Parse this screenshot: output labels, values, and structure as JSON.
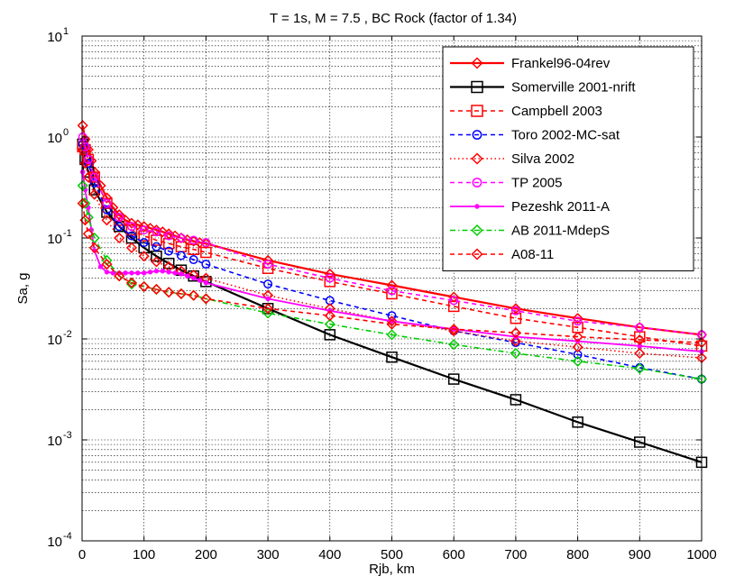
{
  "chart_data": {
    "type": "line",
    "title": "T = 1s, M = 7.5 , BC Rock (factor of  1.34)",
    "xlabel": "Rjb, km",
    "ylabel": "Sa, g",
    "xlim": [
      0,
      1000
    ],
    "ylim": [
      0.0001,
      10
    ],
    "yscale": "log",
    "grid": true,
    "legend_position": "top-right",
    "x_ticks": [
      0,
      100,
      200,
      300,
      400,
      500,
      600,
      700,
      800,
      900,
      1000
    ],
    "y_tick_exponents": [
      -4,
      -3,
      -2,
      -1,
      0,
      1
    ],
    "y_tick_base": "10",
    "series": [
      {
        "name": "Frankel96-04rev",
        "color": "#ff0000",
        "dash": "solid",
        "marker": "diamond",
        "width": 2.2,
        "x": [
          1,
          5,
          10,
          15,
          20,
          30,
          40,
          50,
          60,
          70,
          80,
          90,
          100,
          110,
          120,
          130,
          140,
          150,
          160,
          170,
          180,
          190,
          200,
          300,
          400,
          500,
          600,
          700,
          800,
          900,
          1000
        ],
        "y": [
          1.3,
          0.95,
          0.75,
          0.58,
          0.45,
          0.33,
          0.25,
          0.2,
          0.17,
          0.15,
          0.14,
          0.135,
          0.13,
          0.125,
          0.12,
          0.115,
          0.11,
          0.105,
          0.1,
          0.096,
          0.093,
          0.09,
          0.088,
          0.06,
          0.044,
          0.034,
          0.026,
          0.02,
          0.016,
          0.013,
          0.011
        ]
      },
      {
        "name": "Somerville 2001-nrift",
        "color": "#000000",
        "dash": "solid",
        "marker": "square",
        "width": 2.2,
        "x": [
          1,
          5,
          10,
          20,
          40,
          60,
          80,
          100,
          120,
          140,
          160,
          180,
          200,
          300,
          400,
          500,
          600,
          700,
          800,
          900,
          1000
        ],
        "y": [
          0.85,
          0.6,
          0.45,
          0.3,
          0.18,
          0.13,
          0.1,
          0.08,
          0.066,
          0.056,
          0.048,
          0.042,
          0.037,
          0.02,
          0.011,
          0.0066,
          0.004,
          0.0025,
          0.0015,
          0.00095,
          0.0006
        ]
      },
      {
        "name": "Campbell 2003",
        "color": "#ff0000",
        "dash": "5,4",
        "marker": "square",
        "width": 1.6,
        "x": [
          1,
          5,
          10,
          20,
          40,
          60,
          80,
          100,
          120,
          140,
          160,
          180,
          200,
          300,
          400,
          500,
          600,
          700,
          800,
          900,
          1000
        ],
        "y": [
          0.8,
          0.75,
          0.6,
          0.4,
          0.22,
          0.15,
          0.12,
          0.105,
          0.095,
          0.088,
          0.082,
          0.077,
          0.072,
          0.05,
          0.037,
          0.028,
          0.021,
          0.016,
          0.013,
          0.0105,
          0.0085
        ]
      },
      {
        "name": "Toro 2002-MC-sat",
        "color": "#0000ff",
        "dash": "5,4",
        "marker": "circle",
        "width": 1.6,
        "x": [
          1,
          5,
          10,
          20,
          40,
          60,
          80,
          100,
          120,
          140,
          160,
          180,
          200,
          300,
          400,
          500,
          600,
          700,
          800,
          900,
          1000
        ],
        "y": [
          0.85,
          0.8,
          0.55,
          0.35,
          0.19,
          0.13,
          0.105,
          0.09,
          0.082,
          0.074,
          0.067,
          0.061,
          0.055,
          0.035,
          0.024,
          0.017,
          0.012,
          0.0092,
          0.007,
          0.0052,
          0.004
        ]
      },
      {
        "name": "Silva 2002",
        "color": "#ff0000",
        "dash": "1.5,3",
        "marker": "diamond",
        "width": 1.6,
        "x": [
          1,
          5,
          10,
          20,
          40,
          60,
          80,
          100,
          120,
          140,
          160,
          180,
          200,
          300,
          400,
          500,
          600,
          700,
          800,
          900,
          1000
        ],
        "y": [
          0.75,
          0.55,
          0.4,
          0.27,
          0.15,
          0.1,
          0.08,
          0.066,
          0.058,
          0.052,
          0.047,
          0.043,
          0.04,
          0.027,
          0.02,
          0.015,
          0.012,
          0.0095,
          0.0083,
          0.0072,
          0.0065
        ]
      },
      {
        "name": "TP 2005",
        "color": "#ff00ff",
        "dash": "5,4",
        "marker": "circle",
        "width": 1.6,
        "x": [
          1,
          5,
          10,
          20,
          40,
          60,
          80,
          100,
          120,
          140,
          160,
          180,
          200,
          300,
          400,
          500,
          600,
          700,
          800,
          900,
          1000
        ],
        "y": [
          1.0,
          0.8,
          0.6,
          0.4,
          0.22,
          0.16,
          0.13,
          0.12,
          0.115,
          0.105,
          0.1,
          0.095,
          0.09,
          0.055,
          0.04,
          0.03,
          0.024,
          0.019,
          0.015,
          0.013,
          0.011
        ]
      },
      {
        "name": "Pezeshk 2011-A",
        "color": "#ff00ff",
        "dash": "solid",
        "marker": "dot",
        "width": 1.8,
        "x": [
          1,
          5,
          10,
          15,
          20,
          30,
          40,
          50,
          60,
          70,
          80,
          90,
          100,
          110,
          120,
          130,
          140,
          150,
          160,
          170,
          180,
          190,
          200,
          300,
          400,
          500,
          600,
          700,
          800,
          900,
          1000
        ],
        "y": [
          0.45,
          0.3,
          0.2,
          0.12,
          0.075,
          0.052,
          0.046,
          0.045,
          0.045,
          0.045,
          0.045,
          0.045,
          0.045,
          0.046,
          0.047,
          0.047,
          0.046,
          0.045,
          0.044,
          0.042,
          0.04,
          0.038,
          0.036,
          0.025,
          0.019,
          0.015,
          0.0125,
          0.0105,
          0.0095,
          0.0085,
          0.0075
        ]
      },
      {
        "name": "AB 2011-MdepS",
        "color": "#00cc00",
        "dash": "6,3,1.5,3",
        "marker": "diamond",
        "width": 1.6,
        "x": [
          1,
          5,
          10,
          20,
          40,
          60,
          80,
          100,
          120,
          140,
          160,
          180,
          200,
          300,
          400,
          500,
          600,
          700,
          800,
          900,
          1000
        ],
        "y": [
          0.33,
          0.22,
          0.16,
          0.1,
          0.06,
          0.042,
          0.035,
          0.033,
          0.031,
          0.029,
          0.028,
          0.027,
          0.025,
          0.018,
          0.014,
          0.011,
          0.0088,
          0.0072,
          0.006,
          0.0051,
          0.004
        ]
      },
      {
        "name": "A08-11",
        "color": "#ff0000",
        "dash": "5,4",
        "marker": "diamond",
        "width": 1.6,
        "x": [
          1,
          5,
          10,
          20,
          40,
          60,
          80,
          100,
          120,
          140,
          160,
          180,
          200,
          300,
          400,
          500,
          600,
          700,
          800,
          900,
          1000
        ],
        "y": [
          0.22,
          0.15,
          0.11,
          0.08,
          0.055,
          0.042,
          0.036,
          0.033,
          0.031,
          0.029,
          0.028,
          0.027,
          0.025,
          0.02,
          0.017,
          0.014,
          0.0125,
          0.0115,
          0.0105,
          0.0098,
          0.0092
        ]
      }
    ]
  }
}
